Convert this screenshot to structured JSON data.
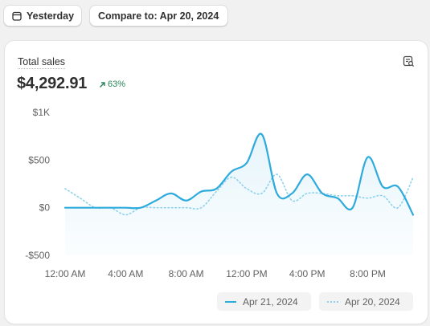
{
  "header": {
    "date_button": "Yesterday",
    "compare_button": "Compare to: Apr 20, 2024"
  },
  "card": {
    "title": "Total sales",
    "value": "$4,292.91",
    "delta": "63%",
    "icon": "analytics-icon"
  },
  "colors": {
    "current": "#2eaadc",
    "compare": "#8ed1ec",
    "positive": "#29845a"
  },
  "chart_data": {
    "type": "line",
    "x_ticks": [
      "12:00 AM",
      "4:00 AM",
      "8:00 AM",
      "12:00 PM",
      "4:00 PM",
      "8:00 PM"
    ],
    "y_ticks": [
      "$1K",
      "$500",
      "$0",
      "-$500"
    ],
    "ylim": [
      -500,
      1000
    ],
    "xlim": [
      0,
      23
    ],
    "x_hours": [
      0,
      1,
      2,
      3,
      4,
      5,
      6,
      7,
      8,
      9,
      10,
      11,
      12,
      13,
      14,
      15,
      16,
      17,
      18,
      19,
      20,
      21,
      22,
      23
    ],
    "series": [
      {
        "name": "Apr 21, 2024",
        "style": "solid",
        "values": [
          0,
          0,
          0,
          0,
          0,
          0,
          75,
          150,
          75,
          170,
          200,
          380,
          470,
          770,
          150,
          150,
          350,
          150,
          100,
          0,
          530,
          220,
          220,
          -75
        ]
      },
      {
        "name": "Apr 20, 2024",
        "style": "dotted",
        "values": [
          200,
          100,
          0,
          0,
          -75,
          0,
          0,
          0,
          0,
          0,
          170,
          320,
          200,
          150,
          350,
          75,
          150,
          150,
          125,
          125,
          100,
          125,
          0,
          320
        ]
      }
    ],
    "legend": "bottom-right",
    "grid": false
  }
}
